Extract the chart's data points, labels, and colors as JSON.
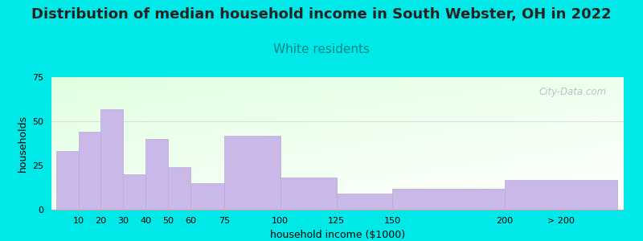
{
  "title": "Distribution of median household income in South Webster, OH in 2022",
  "subtitle": "White residents",
  "xlabel": "household income ($1000)",
  "ylabel": "households",
  "bar_labels": [
    "10",
    "20",
    "30",
    "40",
    "50",
    "60",
    "75",
    "100",
    "125",
    "150",
    "200",
    "> 200"
  ],
  "bar_values": [
    33,
    44,
    57,
    20,
    40,
    24,
    15,
    42,
    18,
    9,
    12,
    17
  ],
  "bar_color": "#c9b8e8",
  "bar_edge_color": "#b8a8d8",
  "ylim": [
    0,
    75
  ],
  "yticks": [
    0,
    25,
    50,
    75
  ],
  "bg_outer": "#00e8e8",
  "title_fontsize": 13,
  "subtitle_fontsize": 11,
  "subtitle_color": "#008888",
  "title_color": "#222222",
  "axis_label_fontsize": 9,
  "tick_fontsize": 8,
  "watermark_text": "City-Data.com",
  "watermark_color": "#b0b8c0",
  "left_edges": [
    0,
    10,
    20,
    30,
    40,
    50,
    60,
    75,
    100,
    125,
    150,
    200
  ],
  "bar_widths": [
    10,
    10,
    10,
    10,
    10,
    10,
    15,
    25,
    25,
    25,
    50,
    50
  ],
  "xtick_positions": [
    10,
    20,
    30,
    40,
    50,
    60,
    75,
    100,
    125,
    150,
    200,
    225
  ],
  "xlim": [
    -2,
    253
  ],
  "hline_y": 50,
  "hline_color": "#dddddd"
}
